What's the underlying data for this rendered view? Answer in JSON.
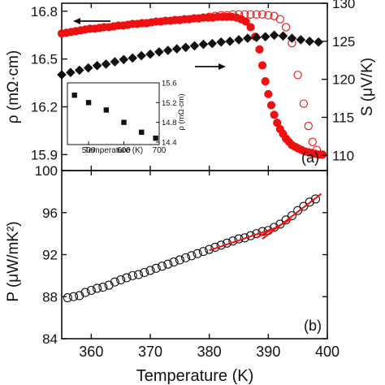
{
  "chart_data": [
    {
      "panel": "(a)",
      "type": "scatter",
      "xlim": [
        355,
        400
      ],
      "left_axis": {
        "label": "ρ (mΩ·cm)",
        "ylim": [
          15.8,
          16.85
        ],
        "ticks": [
          15.9,
          16.2,
          16.5,
          16.8
        ],
        "tick_labels": [
          "15.9",
          "16.2",
          "16.5",
          "16.8"
        ]
      },
      "right_axis": {
        "label": "S (μV/K)",
        "ylim": [
          108,
          130
        ],
        "ticks": [
          110,
          115,
          120,
          125,
          130
        ],
        "tick_labels": [
          "110",
          "115",
          "120",
          "125",
          "130"
        ]
      },
      "series": [
        {
          "axis": "left",
          "marker": "circle-filled",
          "color": "#ee1111",
          "x": [
            355.0,
            355.8,
            356.6,
            357.4,
            358.2,
            359.0,
            359.8,
            360.6,
            361.4,
            362.2,
            363.0,
            363.8,
            364.6,
            365.4,
            366.2,
            367.0,
            367.8,
            368.6,
            369.4,
            370.2,
            371.0,
            371.8,
            372.6,
            373.4,
            374.2,
            375.0,
            375.8,
            376.6,
            377.4,
            378.2,
            379.0,
            379.8,
            380.6,
            381.4,
            382.2,
            383.0,
            383.8,
            384.6,
            385.4,
            386.2,
            387.0,
            387.8,
            388.5,
            389.0,
            389.5,
            390.0,
            390.5,
            391.0,
            391.5,
            392.0,
            392.5,
            393.0,
            393.5,
            394.0,
            394.5,
            395.0,
            395.6,
            396.2,
            396.8,
            397.4,
            398.0,
            398.6,
            399.2
          ],
          "y": [
            16.66,
            16.665,
            16.67,
            16.675,
            16.68,
            16.685,
            16.69,
            16.69,
            16.695,
            16.7,
            16.7,
            16.705,
            16.71,
            16.71,
            16.715,
            16.72,
            16.72,
            16.725,
            16.725,
            16.73,
            16.735,
            16.735,
            16.74,
            16.74,
            16.745,
            16.745,
            16.75,
            16.75,
            16.755,
            16.755,
            16.76,
            16.76,
            16.76,
            16.765,
            16.765,
            16.765,
            16.765,
            16.76,
            16.75,
            16.735,
            16.7,
            16.64,
            16.56,
            16.46,
            16.36,
            16.28,
            16.21,
            16.15,
            16.1,
            16.06,
            16.03,
            16.0,
            15.98,
            15.96,
            15.95,
            15.94,
            15.93,
            15.92,
            15.915,
            15.91,
            15.905,
            15.9,
            15.9
          ]
        },
        {
          "axis": "left",
          "marker": "circle-open",
          "color": "#ee1111",
          "x": [
            380.0,
            381.0,
            382.0,
            383.0,
            384.0,
            385.0,
            386.0,
            387.0,
            388.0,
            389.0,
            390.0,
            391.0,
            392.0,
            393.0,
            394.0,
            395.0,
            396.0,
            396.8,
            397.5,
            398.2,
            399.0
          ],
          "y": [
            16.765,
            16.77,
            16.775,
            16.775,
            16.78,
            16.78,
            16.78,
            16.78,
            16.78,
            16.78,
            16.775,
            16.77,
            16.75,
            16.7,
            16.6,
            16.4,
            16.22,
            16.08,
            15.98,
            15.93,
            15.9
          ]
        },
        {
          "axis": "right",
          "marker": "diamond-filled",
          "color": "#111111",
          "x": [
            355.0,
            356.5,
            358.0,
            359.5,
            361.0,
            362.5,
            364.0,
            365.5,
            367.0,
            368.5,
            370.0,
            371.5,
            373.0,
            374.5,
            376.0,
            377.5,
            379.0,
            380.5,
            382.0,
            383.5,
            385.0,
            386.5,
            388.0,
            389.5,
            391.0,
            392.5,
            394.0,
            395.5,
            397.0,
            398.5
          ],
          "y": [
            120.6,
            120.9,
            121.2,
            121.5,
            121.8,
            122.0,
            122.3,
            122.6,
            122.8,
            123.1,
            123.3,
            123.6,
            123.8,
            124.0,
            124.2,
            124.4,
            124.6,
            124.7,
            124.9,
            125.0,
            125.2,
            125.4,
            125.5,
            125.6,
            125.8,
            125.7,
            125.4,
            125.2,
            125.0,
            124.9
          ]
        }
      ],
      "inset": {
        "type": "scatter",
        "xlabel": "Temperature (K)",
        "ylabel": "ρ (mΩ·cm)",
        "xlim": [
          440,
          700
        ],
        "ylim": [
          14.35,
          15.6
        ],
        "xticks": [
          500,
          600,
          700
        ],
        "xtick_labels": [
          "500",
          "600",
          "700"
        ],
        "yticks": [
          14.4,
          14.8,
          15.2,
          15.6
        ],
        "ytick_labels": [
          "14.4",
          "14.8",
          "15.2",
          "15.6"
        ],
        "x": [
          460,
          500,
          550,
          600,
          650,
          690
        ],
        "y": [
          15.35,
          15.2,
          15.05,
          14.8,
          14.6,
          14.48
        ]
      }
    },
    {
      "panel": "(b)",
      "type": "scatter",
      "xlabel": "Temperature (K)",
      "ylabel": "P (μW/mK²)",
      "xlim": [
        355,
        400
      ],
      "ylim": [
        84,
        100
      ],
      "xticks": [
        360,
        370,
        380,
        390,
        400
      ],
      "xtick_labels": [
        "360",
        "370",
        "380",
        "390",
        "400"
      ],
      "yticks": [
        84,
        88,
        92,
        96,
        100
      ],
      "ytick_labels": [
        "84",
        "88",
        "92",
        "96",
        "100"
      ],
      "series": [
        {
          "marker": "circle-open",
          "color": "#111111",
          "x": [
            356.0,
            357.0,
            358.0,
            359.0,
            360.0,
            361.0,
            362.0,
            363.0,
            364.0,
            365.0,
            366.0,
            367.0,
            368.0,
            369.0,
            370.0,
            371.0,
            372.0,
            373.0,
            374.0,
            375.0,
            376.0,
            377.0,
            378.0,
            379.0,
            380.0,
            381.0,
            382.0,
            383.0,
            384.0,
            385.0,
            386.0,
            387.0,
            388.0,
            389.0,
            390.0,
            391.0,
            392.0,
            393.0,
            394.0,
            395.0,
            396.0,
            397.0,
            398.0
          ],
          "y": [
            87.9,
            88.0,
            88.1,
            88.4,
            88.6,
            88.8,
            88.9,
            89.1,
            89.4,
            89.6,
            89.8,
            90.0,
            90.1,
            90.3,
            90.5,
            90.7,
            90.9,
            91.1,
            91.3,
            91.5,
            91.7,
            91.9,
            92.1,
            92.3,
            92.5,
            92.7,
            92.9,
            93.1,
            93.3,
            93.5,
            93.6,
            93.8,
            94.0,
            94.2,
            94.3,
            94.6,
            94.9,
            95.3,
            95.7,
            96.2,
            96.6,
            97.0,
            97.3
          ]
        }
      ],
      "fits": [
        {
          "color": "#ee1111",
          "x": [
            380,
            392
          ],
          "y": [
            92.4,
            94.7
          ]
        },
        {
          "color": "#ee1111",
          "x": [
            388,
            394
          ],
          "y": [
            93.6,
            95.4
          ]
        },
        {
          "color": "#ee1111",
          "x": [
            389,
            399
          ],
          "y": [
            93.5,
            97.8
          ]
        }
      ]
    }
  ]
}
